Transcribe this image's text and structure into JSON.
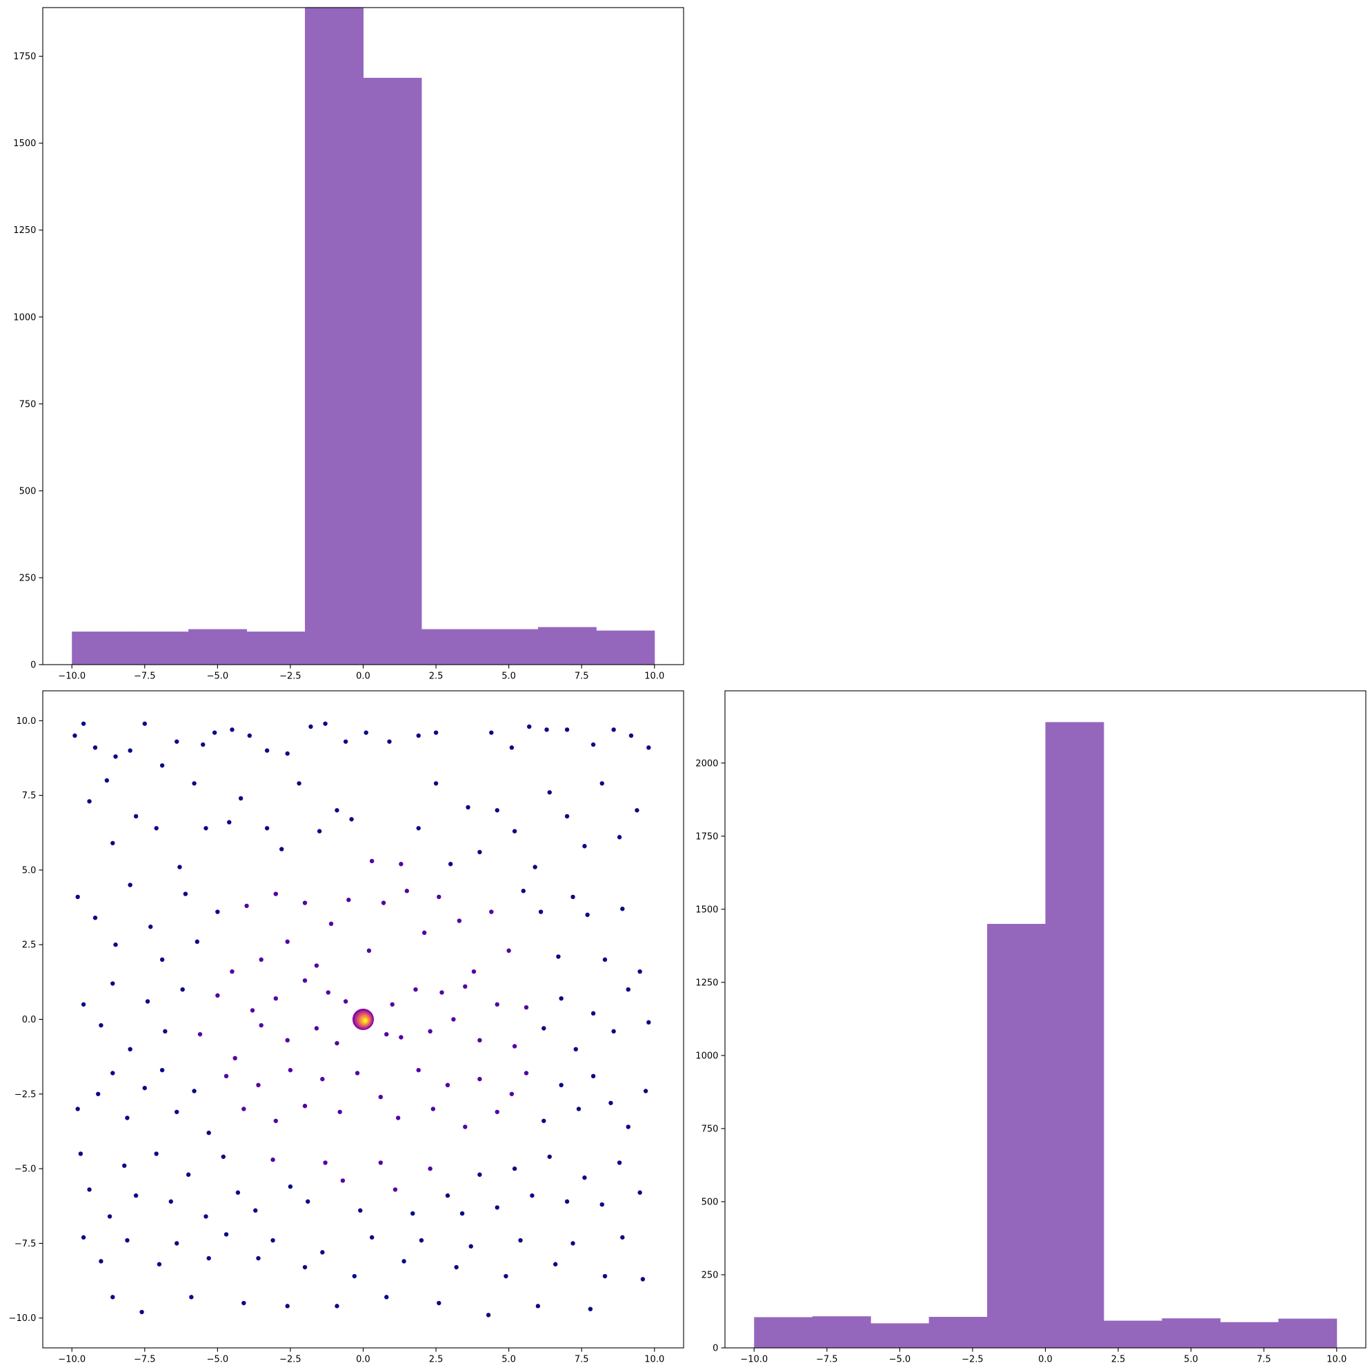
{
  "chart_data": [
    {
      "id": "hist-top",
      "type": "bar",
      "title": "",
      "xlabel": "",
      "ylabel": "",
      "bin_edges": [
        -10,
        -8,
        -6,
        -4,
        -2,
        0,
        2,
        4,
        6,
        8,
        10
      ],
      "values": [
        95,
        95,
        102,
        95,
        1890,
        1688,
        102,
        102,
        108,
        98
      ],
      "xlim": [
        -11,
        11
      ],
      "ylim": [
        0,
        1890
      ],
      "xticks": [
        -10.0,
        -7.5,
        -5.0,
        -2.5,
        0.0,
        2.5,
        5.0,
        7.5,
        10.0
      ],
      "xtick_labels": [
        "−10.0",
        "−7.5",
        "−5.0",
        "−2.5",
        "0.0",
        "2.5",
        "5.0",
        "7.5",
        "10.0"
      ],
      "yticks": [
        0,
        250,
        500,
        750,
        1000,
        1250,
        1500,
        1750
      ],
      "ytick_labels": [
        "0",
        "250",
        "500",
        "750",
        "1000",
        "1250",
        "1500",
        "1750"
      ],
      "color": "#9467bd",
      "grid": false
    },
    {
      "id": "scatter",
      "type": "scatter",
      "title": "",
      "xlabel": "",
      "ylabel": "",
      "xlim": [
        -11,
        11
      ],
      "ylim": [
        -11,
        11
      ],
      "xticks": [
        -10.0,
        -7.5,
        -5.0,
        -2.5,
        0.0,
        2.5,
        5.0,
        7.5,
        10.0
      ],
      "xtick_labels": [
        "−10.0",
        "−7.5",
        "−5.0",
        "−2.5",
        "0.0",
        "2.5",
        "5.0",
        "7.5",
        "10.0"
      ],
      "yticks": [
        -10.0,
        -7.5,
        -5.0,
        -2.5,
        0.0,
        2.5,
        5.0,
        7.5,
        10.0
      ],
      "ytick_labels": [
        "−10.0",
        "−7.5",
        "−5.0",
        "−2.5",
        "0.0",
        "2.5",
        "5.0",
        "7.5",
        "10.0"
      ],
      "colormap": "plasma",
      "colors": [
        "#0d0887",
        "#5302a3",
        "#8b0aa5",
        "#b83289",
        "#db5c68",
        "#f48849",
        "#febd2a",
        "#f0f921"
      ],
      "cluster": {
        "center": [
          0,
          0
        ],
        "spread": 0.35
      },
      "points": [
        [
          -9.9,
          9.5
        ],
        [
          -9.6,
          9.9
        ],
        [
          -9.2,
          9.1
        ],
        [
          -8.8,
          8.0
        ],
        [
          -8.5,
          8.8
        ],
        [
          -8.0,
          9.0
        ],
        [
          -7.5,
          9.9
        ],
        [
          -6.9,
          8.5
        ],
        [
          -6.4,
          9.3
        ],
        [
          -5.5,
          9.2
        ],
        [
          -5.1,
          9.6
        ],
        [
          -4.5,
          9.7
        ],
        [
          -3.9,
          9.5
        ],
        [
          -3.3,
          9.0
        ],
        [
          -2.6,
          8.9
        ],
        [
          -1.8,
          9.8
        ],
        [
          -1.3,
          9.9
        ],
        [
          -0.6,
          9.3
        ],
        [
          0.1,
          9.6
        ],
        [
          0.9,
          9.3
        ],
        [
          1.9,
          9.5
        ],
        [
          2.5,
          9.6
        ],
        [
          4.4,
          9.6
        ],
        [
          5.1,
          9.1
        ],
        [
          5.7,
          9.8
        ],
        [
          6.3,
          9.7
        ],
        [
          7.0,
          9.7
        ],
        [
          7.9,
          9.2
        ],
        [
          8.6,
          9.7
        ],
        [
          9.2,
          9.5
        ],
        [
          9.8,
          9.1
        ],
        [
          -9.4,
          7.3
        ],
        [
          -8.6,
          5.9
        ],
        [
          -7.8,
          6.8
        ],
        [
          -7.1,
          6.4
        ],
        [
          -6.3,
          5.1
        ],
        [
          -5.8,
          7.9
        ],
        [
          -5.4,
          6.4
        ],
        [
          -4.6,
          6.6
        ],
        [
          -4.2,
          7.4
        ],
        [
          -3.3,
          6.4
        ],
        [
          -2.8,
          5.7
        ],
        [
          -2.2,
          7.9
        ],
        [
          -1.5,
          6.3
        ],
        [
          -0.9,
          7.0
        ],
        [
          -0.4,
          6.7
        ],
        [
          0.3,
          5.3
        ],
        [
          1.3,
          5.2
        ],
        [
          1.9,
          6.4
        ],
        [
          2.5,
          7.9
        ],
        [
          3.0,
          5.2
        ],
        [
          3.6,
          7.1
        ],
        [
          4.0,
          5.6
        ],
        [
          4.6,
          7.0
        ],
        [
          5.2,
          6.3
        ],
        [
          5.9,
          5.1
        ],
        [
          6.4,
          7.6
        ],
        [
          7.0,
          6.8
        ],
        [
          7.6,
          5.8
        ],
        [
          8.2,
          7.9
        ],
        [
          8.8,
          6.1
        ],
        [
          9.4,
          7.0
        ],
        [
          -9.8,
          4.1
        ],
        [
          -9.2,
          3.4
        ],
        [
          -8.5,
          2.5
        ],
        [
          -8.0,
          4.5
        ],
        [
          -7.3,
          3.1
        ],
        [
          -6.9,
          2.0
        ],
        [
          -6.1,
          4.2
        ],
        [
          -5.7,
          2.6
        ],
        [
          -5.0,
          3.6
        ],
        [
          -4.5,
          1.6
        ],
        [
          -4.0,
          3.8
        ],
        [
          -3.5,
          2.0
        ],
        [
          -3.0,
          4.2
        ],
        [
          -2.6,
          2.6
        ],
        [
          -2.0,
          3.9
        ],
        [
          -1.6,
          1.8
        ],
        [
          -1.1,
          3.2
        ],
        [
          -0.5,
          4.0
        ],
        [
          0.2,
          2.3
        ],
        [
          0.7,
          3.9
        ],
        [
          1.5,
          4.3
        ],
        [
          2.1,
          2.9
        ],
        [
          2.6,
          4.1
        ],
        [
          3.3,
          3.3
        ],
        [
          3.8,
          1.6
        ],
        [
          4.4,
          3.6
        ],
        [
          5.0,
          2.3
        ],
        [
          5.5,
          4.3
        ],
        [
          6.1,
          3.6
        ],
        [
          6.7,
          2.1
        ],
        [
          7.2,
          4.1
        ],
        [
          7.7,
          3.5
        ],
        [
          8.3,
          2.0
        ],
        [
          8.9,
          3.7
        ],
        [
          9.5,
          1.6
        ],
        [
          -9.6,
          0.5
        ],
        [
          -9.0,
          -0.2
        ],
        [
          -8.6,
          1.2
        ],
        [
          -8.0,
          -1.0
        ],
        [
          -7.4,
          0.6
        ],
        [
          -6.8,
          -0.4
        ],
        [
          -6.2,
          1.0
        ],
        [
          -5.6,
          -0.5
        ],
        [
          -5.0,
          0.8
        ],
        [
          -4.4,
          -1.3
        ],
        [
          -3.8,
          0.3
        ],
        [
          -3.5,
          -0.2
        ],
        [
          -3.0,
          0.7
        ],
        [
          -2.6,
          -0.7
        ],
        [
          -2.0,
          1.3
        ],
        [
          -1.6,
          -0.3
        ],
        [
          -1.2,
          0.9
        ],
        [
          -0.9,
          -0.8
        ],
        [
          -0.6,
          0.6
        ],
        [
          0.8,
          -0.5
        ],
        [
          1.0,
          0.5
        ],
        [
          1.3,
          -0.6
        ],
        [
          1.8,
          1.0
        ],
        [
          2.3,
          -0.4
        ],
        [
          2.7,
          0.9
        ],
        [
          3.1,
          0.0
        ],
        [
          3.5,
          1.1
        ],
        [
          4.0,
          -0.7
        ],
        [
          4.6,
          0.5
        ],
        [
          5.2,
          -0.9
        ],
        [
          5.6,
          0.4
        ],
        [
          6.2,
          -0.3
        ],
        [
          6.8,
          0.7
        ],
        [
          7.3,
          -1.0
        ],
        [
          7.9,
          0.2
        ],
        [
          8.6,
          -0.4
        ],
        [
          9.1,
          1.0
        ],
        [
          9.8,
          -0.1
        ],
        [
          -9.8,
          -3.0
        ],
        [
          -9.1,
          -2.5
        ],
        [
          -8.6,
          -1.8
        ],
        [
          -8.1,
          -3.3
        ],
        [
          -7.5,
          -2.3
        ],
        [
          -6.9,
          -1.7
        ],
        [
          -6.4,
          -3.1
        ],
        [
          -5.8,
          -2.4
        ],
        [
          -5.3,
          -3.8
        ],
        [
          -4.7,
          -1.9
        ],
        [
          -4.1,
          -3.0
        ],
        [
          -3.6,
          -2.2
        ],
        [
          -3.0,
          -3.4
        ],
        [
          -2.5,
          -1.7
        ],
        [
          -2.0,
          -2.9
        ],
        [
          -1.4,
          -2.0
        ],
        [
          -0.8,
          -3.1
        ],
        [
          -0.2,
          -1.8
        ],
        [
          0.6,
          -2.6
        ],
        [
          1.2,
          -3.3
        ],
        [
          1.9,
          -1.7
        ],
        [
          2.4,
          -3.0
        ],
        [
          2.9,
          -2.2
        ],
        [
          3.5,
          -3.6
        ],
        [
          4.0,
          -2.0
        ],
        [
          4.6,
          -3.1
        ],
        [
          5.1,
          -2.5
        ],
        [
          5.6,
          -1.8
        ],
        [
          6.2,
          -3.4
        ],
        [
          6.8,
          -2.2
        ],
        [
          7.4,
          -3.0
        ],
        [
          7.9,
          -1.9
        ],
        [
          8.5,
          -2.8
        ],
        [
          9.1,
          -3.6
        ],
        [
          9.7,
          -2.4
        ],
        [
          -9.7,
          -4.5
        ],
        [
          -9.4,
          -5.7
        ],
        [
          -8.7,
          -6.6
        ],
        [
          -8.2,
          -4.9
        ],
        [
          -7.8,
          -5.9
        ],
        [
          -7.1,
          -4.5
        ],
        [
          -6.6,
          -6.1
        ],
        [
          -6.0,
          -5.2
        ],
        [
          -5.4,
          -6.6
        ],
        [
          -4.8,
          -4.6
        ],
        [
          -4.3,
          -5.8
        ],
        [
          -3.7,
          -6.4
        ],
        [
          -3.1,
          -4.7
        ],
        [
          -2.5,
          -5.6
        ],
        [
          -1.9,
          -6.1
        ],
        [
          -1.3,
          -4.8
        ],
        [
          -0.7,
          -5.4
        ],
        [
          -0.1,
          -6.4
        ],
        [
          0.6,
          -4.8
        ],
        [
          1.1,
          -5.7
        ],
        [
          1.7,
          -6.5
        ],
        [
          2.3,
          -5.0
        ],
        [
          2.9,
          -5.9
        ],
        [
          3.4,
          -6.5
        ],
        [
          4.0,
          -5.2
        ],
        [
          4.6,
          -6.3
        ],
        [
          5.2,
          -5.0
        ],
        [
          5.8,
          -5.9
        ],
        [
          6.4,
          -4.6
        ],
        [
          7.0,
          -6.1
        ],
        [
          7.6,
          -5.3
        ],
        [
          8.2,
          -6.2
        ],
        [
          8.8,
          -4.8
        ],
        [
          9.5,
          -5.8
        ],
        [
          -9.6,
          -7.3
        ],
        [
          -9.0,
          -8.1
        ],
        [
          -8.6,
          -9.3
        ],
        [
          -8.1,
          -7.4
        ],
        [
          -7.6,
          -9.8
        ],
        [
          -7.0,
          -8.2
        ],
        [
          -6.4,
          -7.5
        ],
        [
          -5.9,
          -9.3
        ],
        [
          -5.3,
          -8.0
        ],
        [
          -4.7,
          -7.2
        ],
        [
          -4.1,
          -9.5
        ],
        [
          -3.6,
          -8.0
        ],
        [
          -3.1,
          -7.4
        ],
        [
          -2.6,
          -9.6
        ],
        [
          -2.0,
          -8.3
        ],
        [
          -1.4,
          -7.8
        ],
        [
          -0.9,
          -9.6
        ],
        [
          -0.3,
          -8.6
        ],
        [
          0.3,
          -7.3
        ],
        [
          0.8,
          -9.3
        ],
        [
          1.4,
          -8.1
        ],
        [
          2.0,
          -7.4
        ],
        [
          2.6,
          -9.5
        ],
        [
          3.2,
          -8.3
        ],
        [
          3.7,
          -7.6
        ],
        [
          4.3,
          -9.9
        ],
        [
          4.9,
          -8.6
        ],
        [
          5.4,
          -7.4
        ],
        [
          6.0,
          -9.6
        ],
        [
          6.6,
          -8.2
        ],
        [
          7.2,
          -7.5
        ],
        [
          7.8,
          -9.7
        ],
        [
          8.3,
          -8.6
        ],
        [
          8.9,
          -7.3
        ],
        [
          9.6,
          -8.7
        ]
      ]
    },
    {
      "id": "hist-right",
      "type": "bar",
      "title": "",
      "xlabel": "",
      "ylabel": "",
      "bin_edges": [
        -10,
        -8,
        -6,
        -4,
        -2,
        0,
        2,
        4,
        6,
        8,
        10
      ],
      "values": [
        105,
        108,
        84,
        106,
        1450,
        2140,
        93,
        101,
        88,
        100
      ],
      "xlim": [
        -11,
        11
      ],
      "ylim": [
        0,
        2247
      ],
      "xticks": [
        -10.0,
        -7.5,
        -5.0,
        -2.5,
        0.0,
        2.5,
        5.0,
        7.5,
        10.0
      ],
      "xtick_labels": [
        "−10.0",
        "−7.5",
        "−5.0",
        "−2.5",
        "0.0",
        "2.5",
        "5.0",
        "7.5",
        "10.0"
      ],
      "yticks": [
        0,
        250,
        500,
        750,
        1000,
        1250,
        1500,
        1750,
        2000
      ],
      "ytick_labels": [
        "0",
        "250",
        "500",
        "750",
        "1000",
        "1250",
        "1500",
        "1750",
        "2000"
      ],
      "color": "#9467bd",
      "grid": false
    }
  ]
}
